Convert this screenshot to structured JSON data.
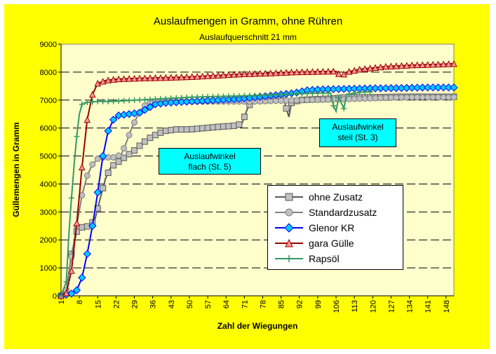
{
  "chart_data": {
    "type": "line",
    "title": "Auslaufmengen in Gramm, ohne Rühren",
    "subtitle": "Auslaufquerschnitt 21 mm",
    "xlabel": "Zahl der Wiegungen",
    "ylabel": "Güllemengen in Gramm",
    "ylim": [
      0,
      9000
    ],
    "xlim": [
      1,
      151
    ],
    "yticks": [
      0,
      1000,
      2000,
      3000,
      4000,
      5000,
      6000,
      7000,
      8000,
      9000
    ],
    "xticks": [
      1,
      8,
      15,
      22,
      29,
      36,
      43,
      50,
      57,
      64,
      71,
      78,
      85,
      92,
      99,
      106,
      113,
      120,
      127,
      134,
      141,
      148
    ],
    "grid": "horizontal dashed",
    "legend_position": "bottom-right",
    "colors": {
      "background": "#ffff00",
      "plot_background": "#ffffcc",
      "annotation_box": "#00ffff"
    },
    "annotations": [
      {
        "text": "Auslaufwinkel flach (St. 5)"
      },
      {
        "text": "Auslaufwinkel steil (St. 3)"
      }
    ],
    "series": [
      {
        "name": "ohne Zusatz",
        "color": "#595959",
        "marker": "square",
        "points": [
          [
            1,
            0
          ],
          [
            3,
            150
          ],
          [
            5,
            1500
          ],
          [
            7,
            2300
          ],
          [
            9,
            2450
          ],
          [
            12,
            2500
          ],
          [
            14,
            2750
          ],
          [
            16,
            3500
          ],
          [
            18,
            4200
          ],
          [
            20,
            4600
          ],
          [
            23,
            4800
          ],
          [
            26,
            5000
          ],
          [
            29,
            5200
          ],
          [
            32,
            5450
          ],
          [
            35,
            5650
          ],
          [
            38,
            5800
          ],
          [
            41,
            5900
          ],
          [
            45,
            5950
          ],
          [
            50,
            5950
          ],
          [
            56,
            6000
          ],
          [
            62,
            6050
          ],
          [
            67,
            6080
          ],
          [
            70,
            6150
          ],
          [
            72,
            6650
          ],
          [
            74,
            7000
          ],
          [
            78,
            7000
          ],
          [
            83,
            7020
          ],
          [
            86,
            7050
          ],
          [
            87,
            6700
          ],
          [
            88,
            6400
          ],
          [
            89,
            6900
          ],
          [
            92,
            7000
          ],
          [
            98,
            7030
          ],
          [
            104,
            7050
          ],
          [
            110,
            7100
          ],
          [
            120,
            7100
          ],
          [
            130,
            7120
          ],
          [
            140,
            7120
          ],
          [
            151,
            7120
          ]
        ]
      },
      {
        "name": "Standardzusatz",
        "color": "#808080",
        "marker": "circle",
        "points": [
          [
            1,
            0
          ],
          [
            3,
            200
          ],
          [
            5,
            1400
          ],
          [
            7,
            2500
          ],
          [
            9,
            3600
          ],
          [
            11,
            4300
          ],
          [
            13,
            4700
          ],
          [
            15,
            4900
          ],
          [
            17,
            4950
          ],
          [
            21,
            4950
          ],
          [
            24,
            5050
          ],
          [
            26,
            5500
          ],
          [
            28,
            6000
          ],
          [
            30,
            6400
          ],
          [
            32,
            6700
          ],
          [
            34,
            6900
          ],
          [
            38,
            6950
          ],
          [
            45,
            6950
          ],
          [
            55,
            6950
          ],
          [
            65,
            6950
          ],
          [
            75,
            6950
          ],
          [
            85,
            6980
          ],
          [
            95,
            7000
          ],
          [
            105,
            7020
          ],
          [
            115,
            7050
          ],
          [
            125,
            7080
          ],
          [
            135,
            7100
          ],
          [
            145,
            7100
          ],
          [
            151,
            7100
          ]
        ]
      },
      {
        "name": "Glenor KR",
        "color": "#0000ff",
        "marker": "diamond",
        "points": [
          [
            1,
            0
          ],
          [
            5,
            80
          ],
          [
            7,
            200
          ],
          [
            9,
            650
          ],
          [
            11,
            1500
          ],
          [
            13,
            2500
          ],
          [
            15,
            3700
          ],
          [
            17,
            5000
          ],
          [
            19,
            5900
          ],
          [
            21,
            6300
          ],
          [
            23,
            6450
          ],
          [
            27,
            6500
          ],
          [
            31,
            6550
          ],
          [
            34,
            6700
          ],
          [
            37,
            6850
          ],
          [
            41,
            6900
          ],
          [
            50,
            6950
          ],
          [
            60,
            7000
          ],
          [
            70,
            7050
          ],
          [
            80,
            7150
          ],
          [
            90,
            7250
          ],
          [
            95,
            7350
          ],
          [
            100,
            7380
          ],
          [
            110,
            7400
          ],
          [
            120,
            7420
          ],
          [
            130,
            7430
          ],
          [
            140,
            7450
          ],
          [
            151,
            7450
          ]
        ]
      },
      {
        "name": "gara Gülle",
        "color": "#990000",
        "marker": "triangle",
        "points": [
          [
            1,
            0
          ],
          [
            3,
            100
          ],
          [
            5,
            900
          ],
          [
            7,
            2600
          ],
          [
            9,
            4600
          ],
          [
            11,
            6300
          ],
          [
            13,
            7200
          ],
          [
            15,
            7600
          ],
          [
            18,
            7700
          ],
          [
            22,
            7750
          ],
          [
            30,
            7780
          ],
          [
            40,
            7800
          ],
          [
            50,
            7830
          ],
          [
            60,
            7880
          ],
          [
            70,
            7930
          ],
          [
            80,
            7960
          ],
          [
            90,
            8000
          ],
          [
            100,
            8020
          ],
          [
            106,
            8030
          ],
          [
            108,
            7850
          ],
          [
            110,
            8000
          ],
          [
            115,
            8100
          ],
          [
            125,
            8200
          ],
          [
            135,
            8250
          ],
          [
            145,
            8280
          ],
          [
            151,
            8300
          ]
        ]
      },
      {
        "name": "Rapsöl",
        "color": "#339966",
        "marker": "plus",
        "points": [
          [
            1,
            0
          ],
          [
            3,
            500
          ],
          [
            4,
            2200
          ],
          [
            5,
            3500
          ],
          [
            6,
            4700
          ],
          [
            7,
            5700
          ],
          [
            8,
            6500
          ],
          [
            9,
            6850
          ],
          [
            11,
            6920
          ],
          [
            15,
            6950
          ],
          [
            20,
            6950
          ],
          [
            30,
            7000
          ],
          [
            40,
            7050
          ],
          [
            50,
            7100
          ],
          [
            60,
            7130
          ],
          [
            70,
            7150
          ],
          [
            80,
            7180
          ],
          [
            90,
            7220
          ],
          [
            100,
            7250
          ],
          [
            104,
            7250
          ],
          [
            105,
            6800
          ],
          [
            106,
            6600
          ],
          [
            107,
            7100
          ],
          [
            109,
            6700
          ],
          [
            110,
            7200
          ],
          [
            115,
            7280
          ],
          [
            120,
            7300
          ]
        ]
      }
    ]
  }
}
